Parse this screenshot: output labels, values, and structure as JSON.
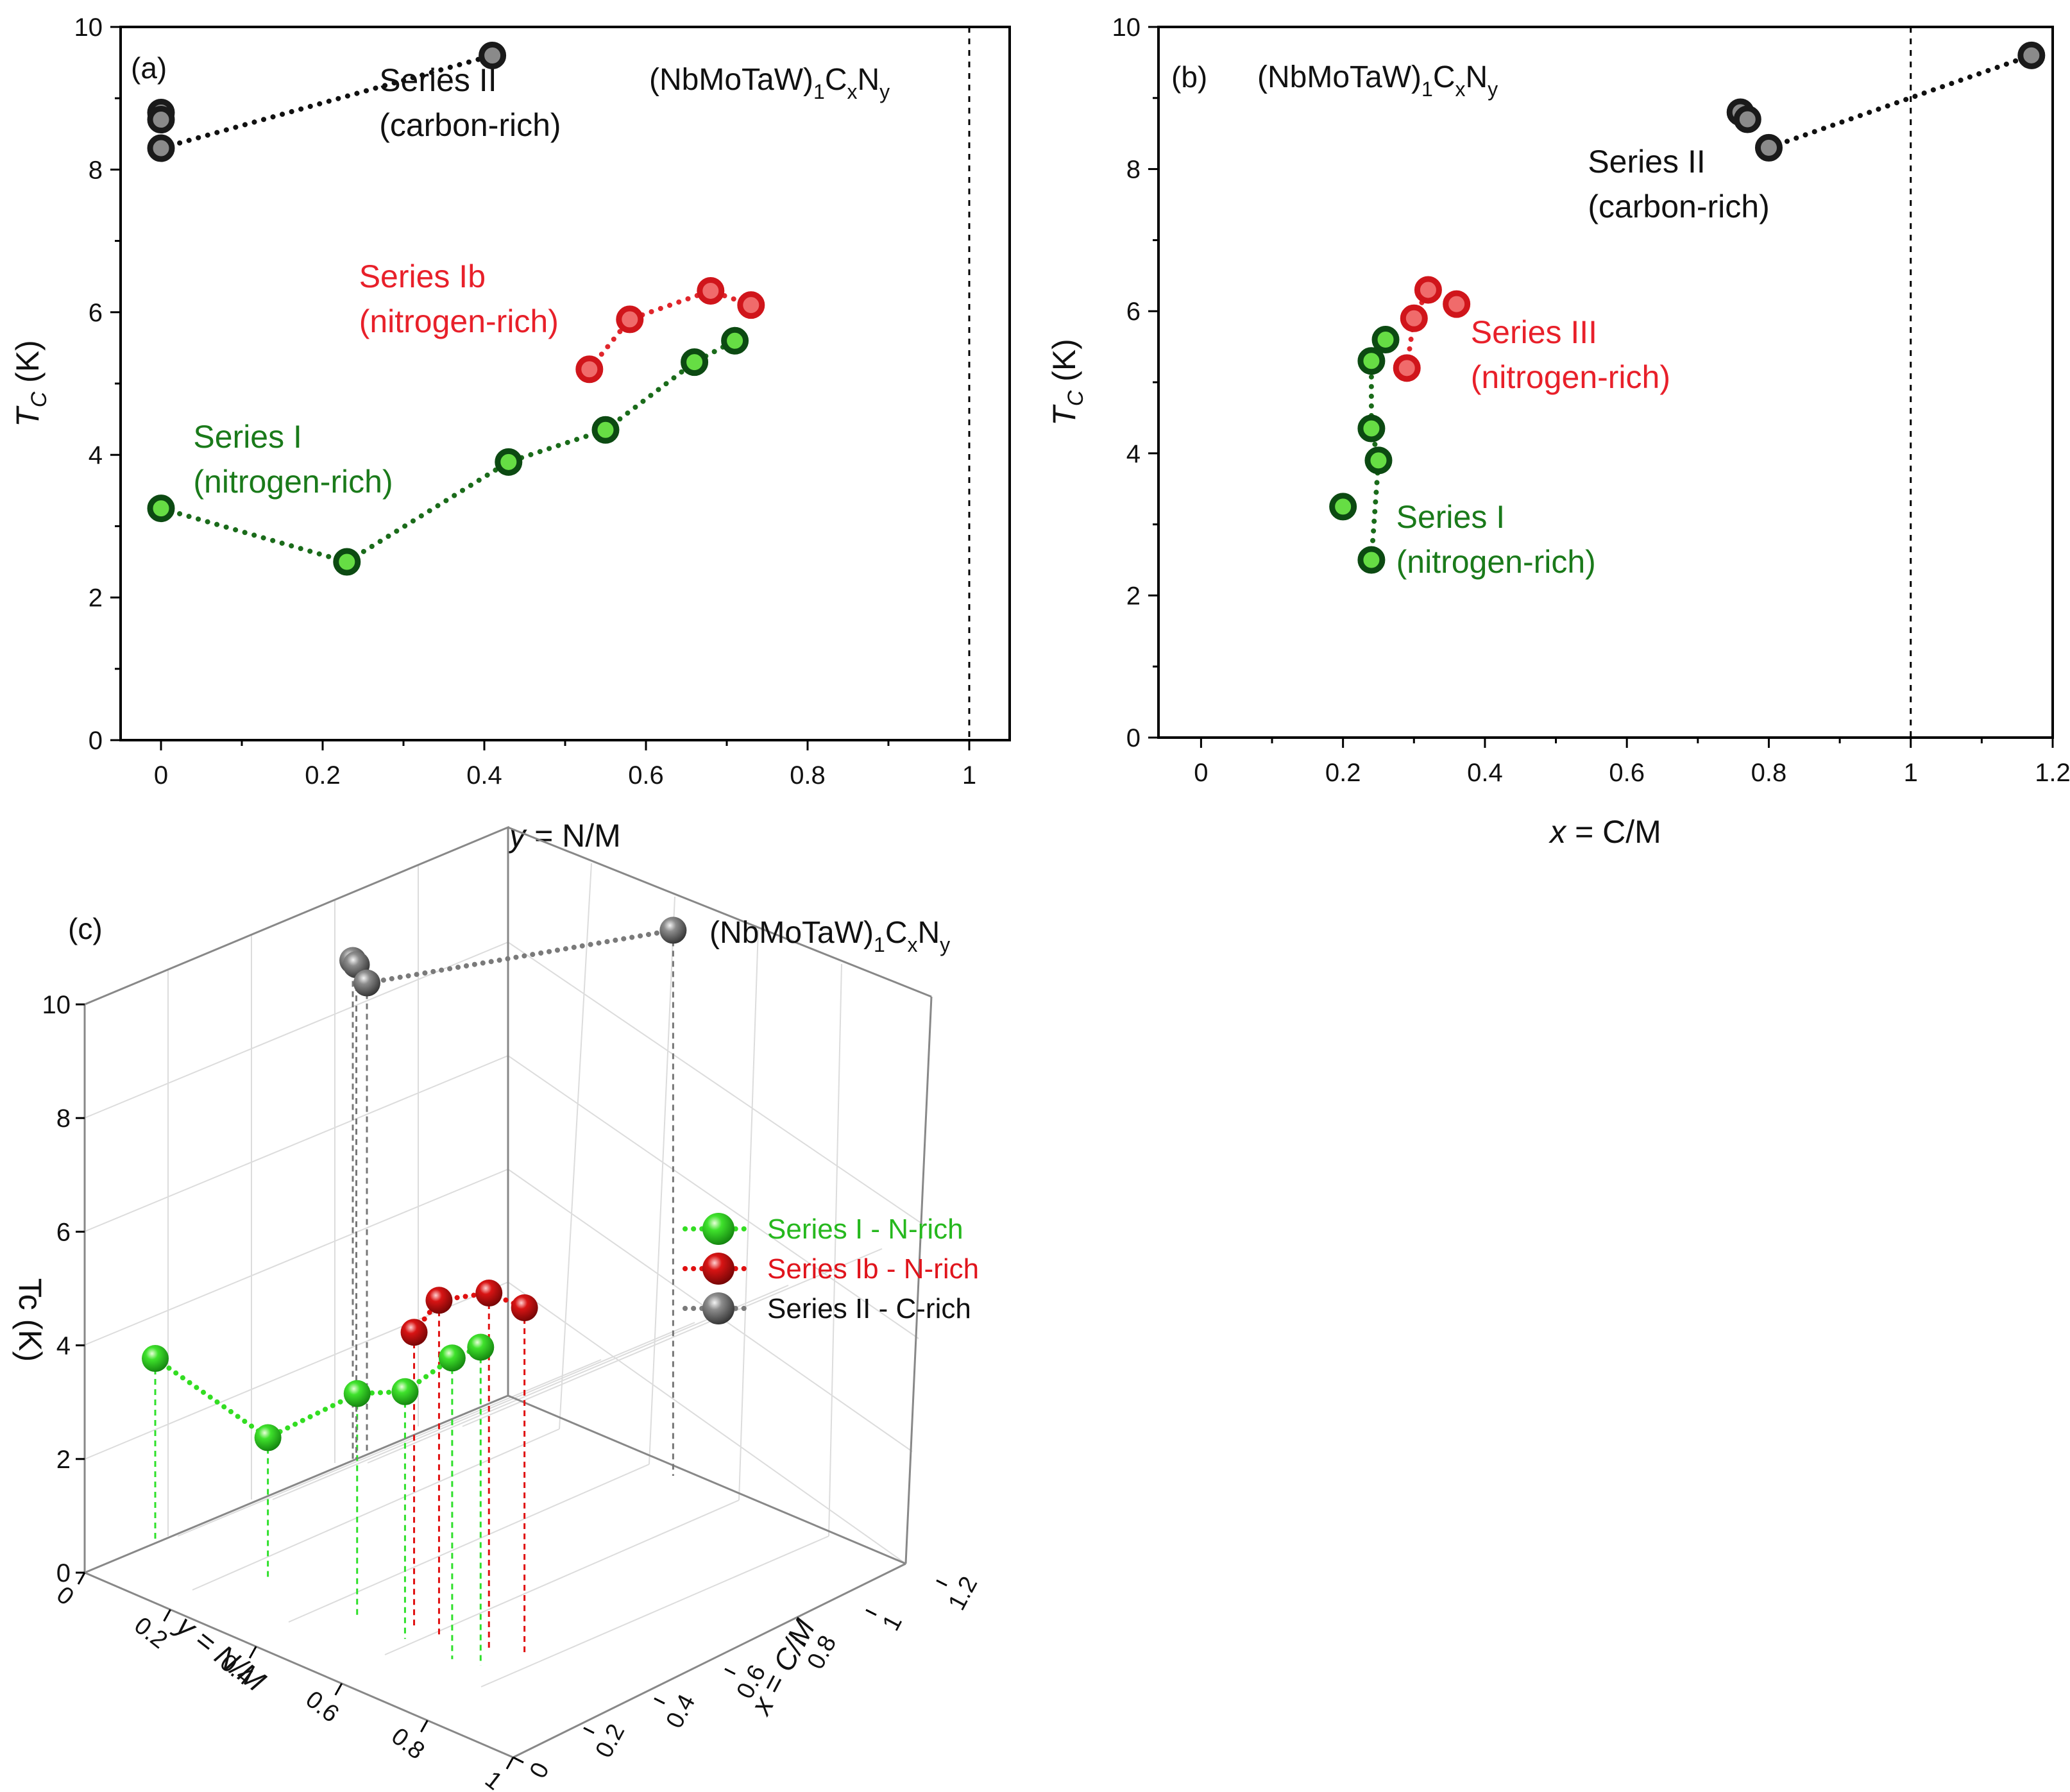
{
  "chart_data": [
    {
      "type": "scatter",
      "panel_label": "(a)",
      "formula": {
        "base": "(NbMoTaW)",
        "s1": "1",
        "c": "C",
        "s2": "x",
        "n": "N",
        "s3": "y"
      },
      "xlabel": {
        "var": "y",
        "rest": " = N/M"
      },
      "ylabel": {
        "var": "T",
        "sub": "C",
        "rest": " (K)"
      },
      "xlim": [
        -0.05,
        1.05
      ],
      "ylim": [
        0,
        10
      ],
      "xticks": [
        0,
        0.2,
        0.4,
        0.6,
        0.8,
        1
      ],
      "xtick_labels": [
        "0",
        "0.2",
        "0.4",
        "0.6",
        "0.8",
        "1"
      ],
      "yticks": [
        0,
        2,
        4,
        6,
        8,
        10
      ],
      "ytick_labels": [
        "0",
        "2",
        "4",
        "6",
        "8",
        "10"
      ],
      "reference_line_x": 1,
      "series": [
        {
          "name": "Series I",
          "key": "green",
          "line": "dotted",
          "x": [
            0,
            0.23,
            0.43,
            0.55,
            0.66,
            0.71
          ],
          "y": [
            3.25,
            2.5,
            3.9,
            4.35,
            5.3,
            5.6
          ],
          "points": [
            [
              0,
              3.25
            ],
            [
              0.23,
              2.5
            ],
            [
              0.43,
              3.9
            ],
            [
              0.55,
              4.35
            ],
            [
              0.66,
              5.3
            ],
            [
              0.71,
              5.6
            ]
          ]
        },
        {
          "name": "Series Ib",
          "key": "red",
          "line": "dotted",
          "x": [
            0.53,
            0.58,
            0.68,
            0.73
          ],
          "y": [
            5.2,
            5.9,
            6.3,
            6.1
          ],
          "points": [
            [
              0.53,
              5.2
            ],
            [
              0.58,
              5.9
            ],
            [
              0.68,
              6.3
            ],
            [
              0.73,
              6.1
            ]
          ]
        },
        {
          "name": "Series II",
          "key": "gray",
          "line": "dotted",
          "x": [
            0,
            0,
            0,
            0.41
          ],
          "y": [
            8.8,
            8.7,
            8.3,
            9.6
          ],
          "points": [
            [
              0,
              8.8
            ],
            [
              0,
              8.7
            ],
            [
              0,
              8.3
            ],
            [
              0.41,
              9.6
            ]
          ],
          "line_points": [
            [
              0,
              8.3
            ],
            [
              0.41,
              9.6
            ]
          ]
        }
      ],
      "annotations": [
        {
          "lines": [
            "Series II",
            "(carbon-rich)"
          ],
          "color": "#111111",
          "at": [
            0.27,
            9.1
          ]
        },
        {
          "lines": [
            "Series Ib",
            "(nitrogen-rich)"
          ],
          "color": "#e8202a",
          "at": [
            0.245,
            6.35
          ]
        },
        {
          "lines": [
            "Series I",
            "(nitrogen-rich)"
          ],
          "color": "#1a7a1a",
          "at": [
            0.04,
            4.1
          ]
        }
      ]
    },
    {
      "type": "scatter",
      "panel_label": "(b)",
      "formula": {
        "base": "(NbMoTaW)",
        "s1": "1",
        "c": "C",
        "s2": "x",
        "n": "N",
        "s3": "y"
      },
      "xlabel": {
        "var": "x",
        "rest": " = C/M"
      },
      "ylabel": {
        "var": "T",
        "sub": "C",
        "rest": " (K)"
      },
      "xlim": [
        -0.06,
        1.2
      ],
      "ylim": [
        0,
        10
      ],
      "xticks": [
        0,
        0.2,
        0.4,
        0.6,
        0.8,
        1,
        1.2
      ],
      "xtick_labels": [
        "0",
        "0.2",
        "0.4",
        "0.6",
        "0.8",
        "1",
        "1.2"
      ],
      "yticks": [
        0,
        2,
        4,
        6,
        8,
        10
      ],
      "ytick_labels": [
        "0",
        "2",
        "4",
        "6",
        "8",
        "10"
      ],
      "reference_line_x": 1,
      "series": [
        {
          "name": "Series I",
          "key": "green",
          "line": "dotted",
          "x": [
            0.2,
            0.24,
            0.25,
            0.24,
            0.24,
            0.26
          ],
          "y": [
            3.25,
            2.5,
            3.9,
            4.35,
            5.3,
            5.6
          ],
          "points": [
            [
              0.2,
              3.25
            ],
            [
              0.24,
              2.5
            ],
            [
              0.25,
              3.9
            ],
            [
              0.24,
              4.35
            ],
            [
              0.24,
              5.3
            ],
            [
              0.26,
              5.6
            ]
          ],
          "line_points": [
            [
              0.24,
              2.5
            ],
            [
              0.25,
              3.9
            ],
            [
              0.24,
              4.35
            ],
            [
              0.24,
              5.3
            ],
            [
              0.26,
              5.6
            ]
          ]
        },
        {
          "name": "Series III",
          "key": "red",
          "line": "dotted",
          "x": [
            0.29,
            0.3,
            0.32,
            0.36
          ],
          "y": [
            5.2,
            5.9,
            6.3,
            6.1
          ],
          "points": [
            [
              0.29,
              5.2
            ],
            [
              0.3,
              5.9
            ],
            [
              0.32,
              6.3
            ],
            [
              0.36,
              6.1
            ]
          ],
          "line_points": [
            [
              0.29,
              5.2
            ],
            [
              0.3,
              5.9
            ],
            [
              0.32,
              6.3
            ]
          ]
        },
        {
          "name": "Series II",
          "key": "gray",
          "line": "dotted",
          "x": [
            0.76,
            0.77,
            0.8,
            1.17
          ],
          "y": [
            8.8,
            8.7,
            8.3,
            9.6
          ],
          "points": [
            [
              0.76,
              8.8
            ],
            [
              0.77,
              8.7
            ],
            [
              0.8,
              8.3
            ],
            [
              1.17,
              9.6
            ]
          ],
          "line_points": [
            [
              0.8,
              8.3
            ],
            [
              1.17,
              9.6
            ]
          ]
        }
      ],
      "annotations": [
        {
          "lines": [
            "Series II",
            "(carbon-rich)"
          ],
          "color": "#111111",
          "at": [
            0.545,
            7.95
          ]
        },
        {
          "lines": [
            "Series III",
            "(nitrogen-rich)"
          ],
          "color": "#e8202a",
          "at": [
            0.38,
            5.55
          ]
        },
        {
          "lines": [
            "Series I",
            "(nitrogen-rich)"
          ],
          "color": "#1a7a1a",
          "at": [
            0.275,
            2.95
          ]
        }
      ]
    },
    {
      "type": "scatter3d",
      "panel_label": "(c)",
      "formula": {
        "base": "(NbMoTaW)",
        "s1": "1",
        "c": "C",
        "s2": "x",
        "n": "N",
        "s3": "y"
      },
      "xlabel": "y = N/M",
      "ylabel": "x = C/M",
      "zlabel": "Tc (K)",
      "xlim": [
        0,
        1
      ],
      "ylim": [
        0,
        1.2
      ],
      "zlim": [
        0,
        10
      ],
      "xtick_labels": [
        "0",
        "0.2",
        "0.4",
        "0.6",
        "0.8",
        "1"
      ],
      "ytick_labels": [
        "0",
        "0.2",
        "0.4",
        "0.6",
        "0.8",
        "1",
        "1.2"
      ],
      "ztick_labels": [
        "0",
        "2",
        "4",
        "6",
        "8",
        "10"
      ],
      "series": [
        {
          "name": "Series I - N-rich",
          "key": "green",
          "x": [
            0,
            0.23,
            0.43,
            0.55,
            0.66,
            0.71
          ],
          "y": [
            0.2,
            0.24,
            0.25,
            0.24,
            0.24,
            0.26
          ],
          "z": [
            3.25,
            2.5,
            3.9,
            4.35,
            5.3,
            5.6
          ]
        },
        {
          "name": "Series Ib - N-rich",
          "key": "red",
          "x": [
            0.53,
            0.58,
            0.68,
            0.73
          ],
          "y": [
            0.29,
            0.3,
            0.32,
            0.36
          ],
          "z": [
            5.2,
            5.9,
            6.3,
            6.1
          ]
        },
        {
          "name": "Series II - C-rich",
          "key": "gray",
          "x": [
            0,
            0,
            0,
            0.41
          ],
          "y": [
            0.76,
            0.77,
            0.8,
            1.17
          ],
          "z": [
            8.8,
            8.7,
            8.3,
            9.6
          ]
        }
      ],
      "legend": [
        "Series I - N-rich",
        "Series Ib - N-rich",
        "Series II - C-rich"
      ]
    }
  ],
  "colors": {
    "green_line": "#1a6b1a",
    "green_fill": "#66dd44",
    "green_edge": "#0c4a12",
    "green_text": "#1a7a1a",
    "red_line": "#e0262c",
    "red_fill": "#f06b6b",
    "red_edge": "#d0151b",
    "red_text": "#e8202a",
    "gray_line": "#111111",
    "gray_fill": "#8a8a8a",
    "gray_edge": "#1a1a1a",
    "legend_green": "#26b81e",
    "legend_red": "#e0141c",
    "legend_gray": "#111111"
  }
}
